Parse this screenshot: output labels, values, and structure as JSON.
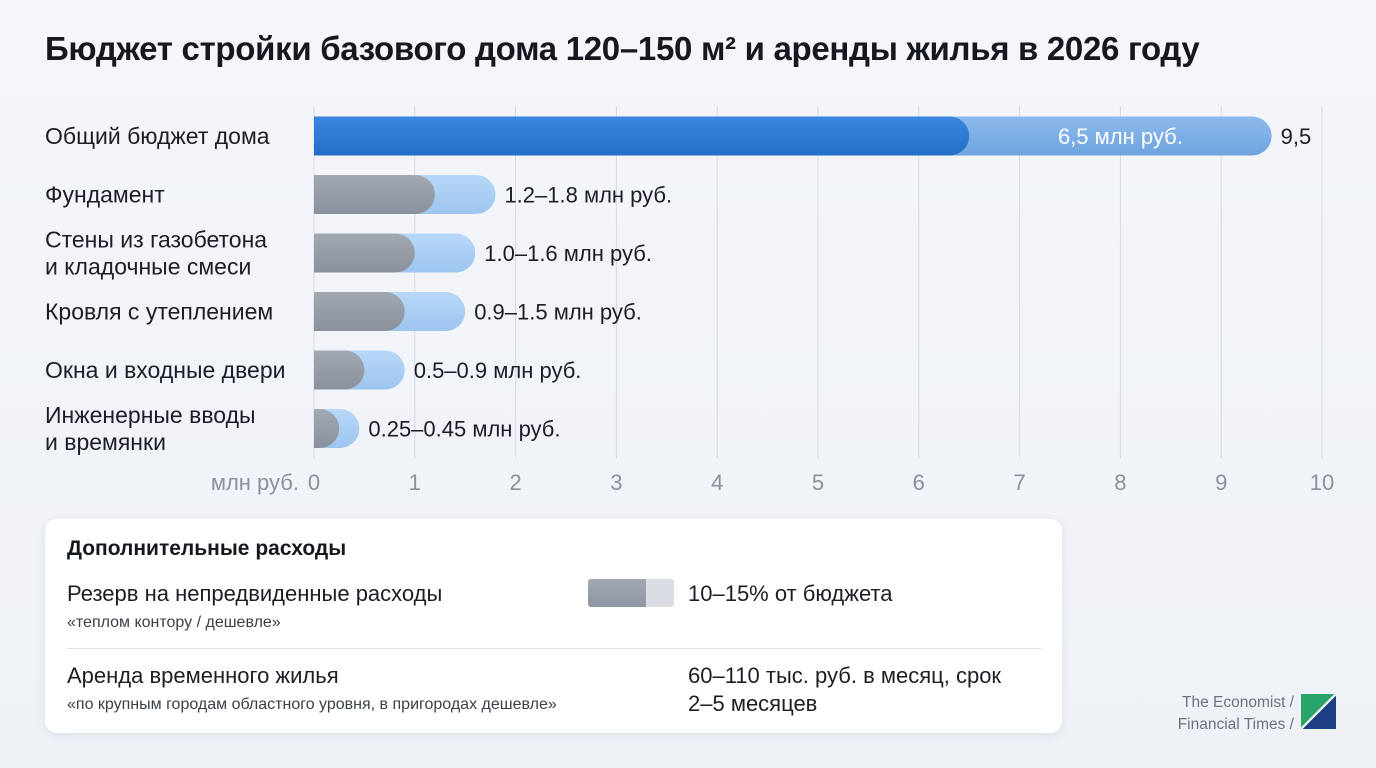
{
  "title": "Бюджет стройки базового дома 120–150 м² и аренды жилья в 2026 году",
  "chart_data": {
    "type": "bar",
    "orientation": "horizontal",
    "xlabel": "млн руб.",
    "xlim": [
      0,
      10
    ],
    "ticks": [
      0,
      1,
      2,
      3,
      4,
      5,
      6,
      7,
      8,
      9,
      10
    ],
    "grid": true,
    "colors": {
      "total_low": "#2f7ad6",
      "total_range": "#7fb0e6",
      "low": "#959ca7",
      "range": "#a9cdf3"
    },
    "bars": [
      {
        "label_lines": [
          "Общий бюджет дома"
        ],
        "low": 6.5,
        "high": 9.5,
        "inner_label": "6,5 млн руб.",
        "end_label": "9,5",
        "style": "total"
      },
      {
        "label_lines": [
          "Фундамент"
        ],
        "low": 1.2,
        "high": 1.8,
        "end_label": "1.2–1.8 млн руб.",
        "style": "item"
      },
      {
        "label_lines": [
          "Стены из газобетона",
          "и кладочные смеси"
        ],
        "low": 1.0,
        "high": 1.6,
        "end_label": "1.0–1.6 млн руб.",
        "style": "item"
      },
      {
        "label_lines": [
          "Кровля с утеплением"
        ],
        "low": 0.9,
        "high": 1.5,
        "end_label": "0.9–1.5 млн руб.",
        "style": "item"
      },
      {
        "label_lines": [
          "Окна и входные двери"
        ],
        "low": 0.5,
        "high": 0.9,
        "end_label": "0.5–0.9 млн руб.",
        "style": "item"
      },
      {
        "label_lines": [
          "Инженерные вводы",
          "и времянки"
        ],
        "low": 0.25,
        "high": 0.45,
        "end_label": "0.25–0.45 млн руб.",
        "style": "item"
      }
    ]
  },
  "extra": {
    "title": "Дополнительные расходы",
    "reserve": {
      "label": "Резерв на непредвиденные расходы",
      "sub": "«теплом контору / дешевле»",
      "value": "10–15% от бюджета",
      "low_pct": 10,
      "high_pct": 15
    },
    "rent": {
      "label": "Аренда временного жилья",
      "sub": "«по крупным городам областного уровня, в пригородах дешевле»",
      "value_line1": "60–110 тыс. руб. в месяц, срок",
      "value_line2": "2–5 месяцев"
    }
  },
  "source": {
    "line1": "The Economist /",
    "line2": "Financial Times /",
    "logo_icon": "diagonal-split-logo"
  }
}
